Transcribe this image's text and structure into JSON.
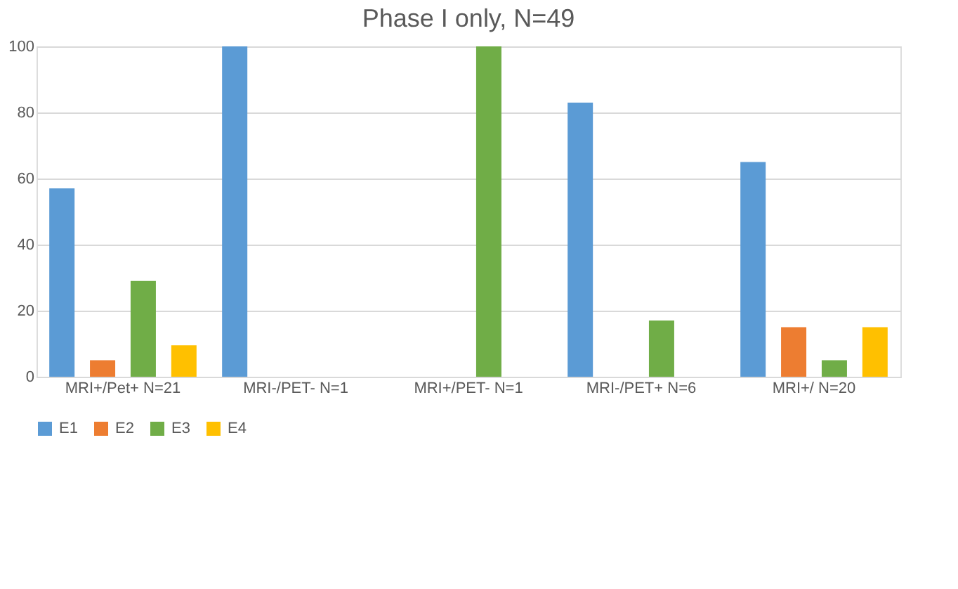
{
  "chart_data": {
    "type": "bar",
    "title": "Phase I only, N=49",
    "categories": [
      "MRI+/Pet+ N=21",
      "MRI-/PET- N=1",
      "MRI+/PET- N=1",
      "MRI-/PET+ N=6",
      "MRI+/ N=20"
    ],
    "series": [
      {
        "name": "E1",
        "color": "#5b9bd5",
        "values": [
          57,
          100,
          0,
          83,
          65
        ]
      },
      {
        "name": "E2",
        "color": "#ed7d31",
        "values": [
          5,
          0,
          0,
          0,
          15
        ]
      },
      {
        "name": "E3",
        "color": "#70ad47",
        "values": [
          29,
          0,
          100,
          17,
          5
        ]
      },
      {
        "name": "E4",
        "color": "#ffc000",
        "values": [
          9.5,
          0,
          0,
          0,
          15
        ]
      }
    ],
    "ylim": [
      0,
      100
    ],
    "yticks": [
      0,
      20,
      40,
      60,
      80,
      100
    ],
    "grid": "y",
    "legend": "bottom"
  }
}
